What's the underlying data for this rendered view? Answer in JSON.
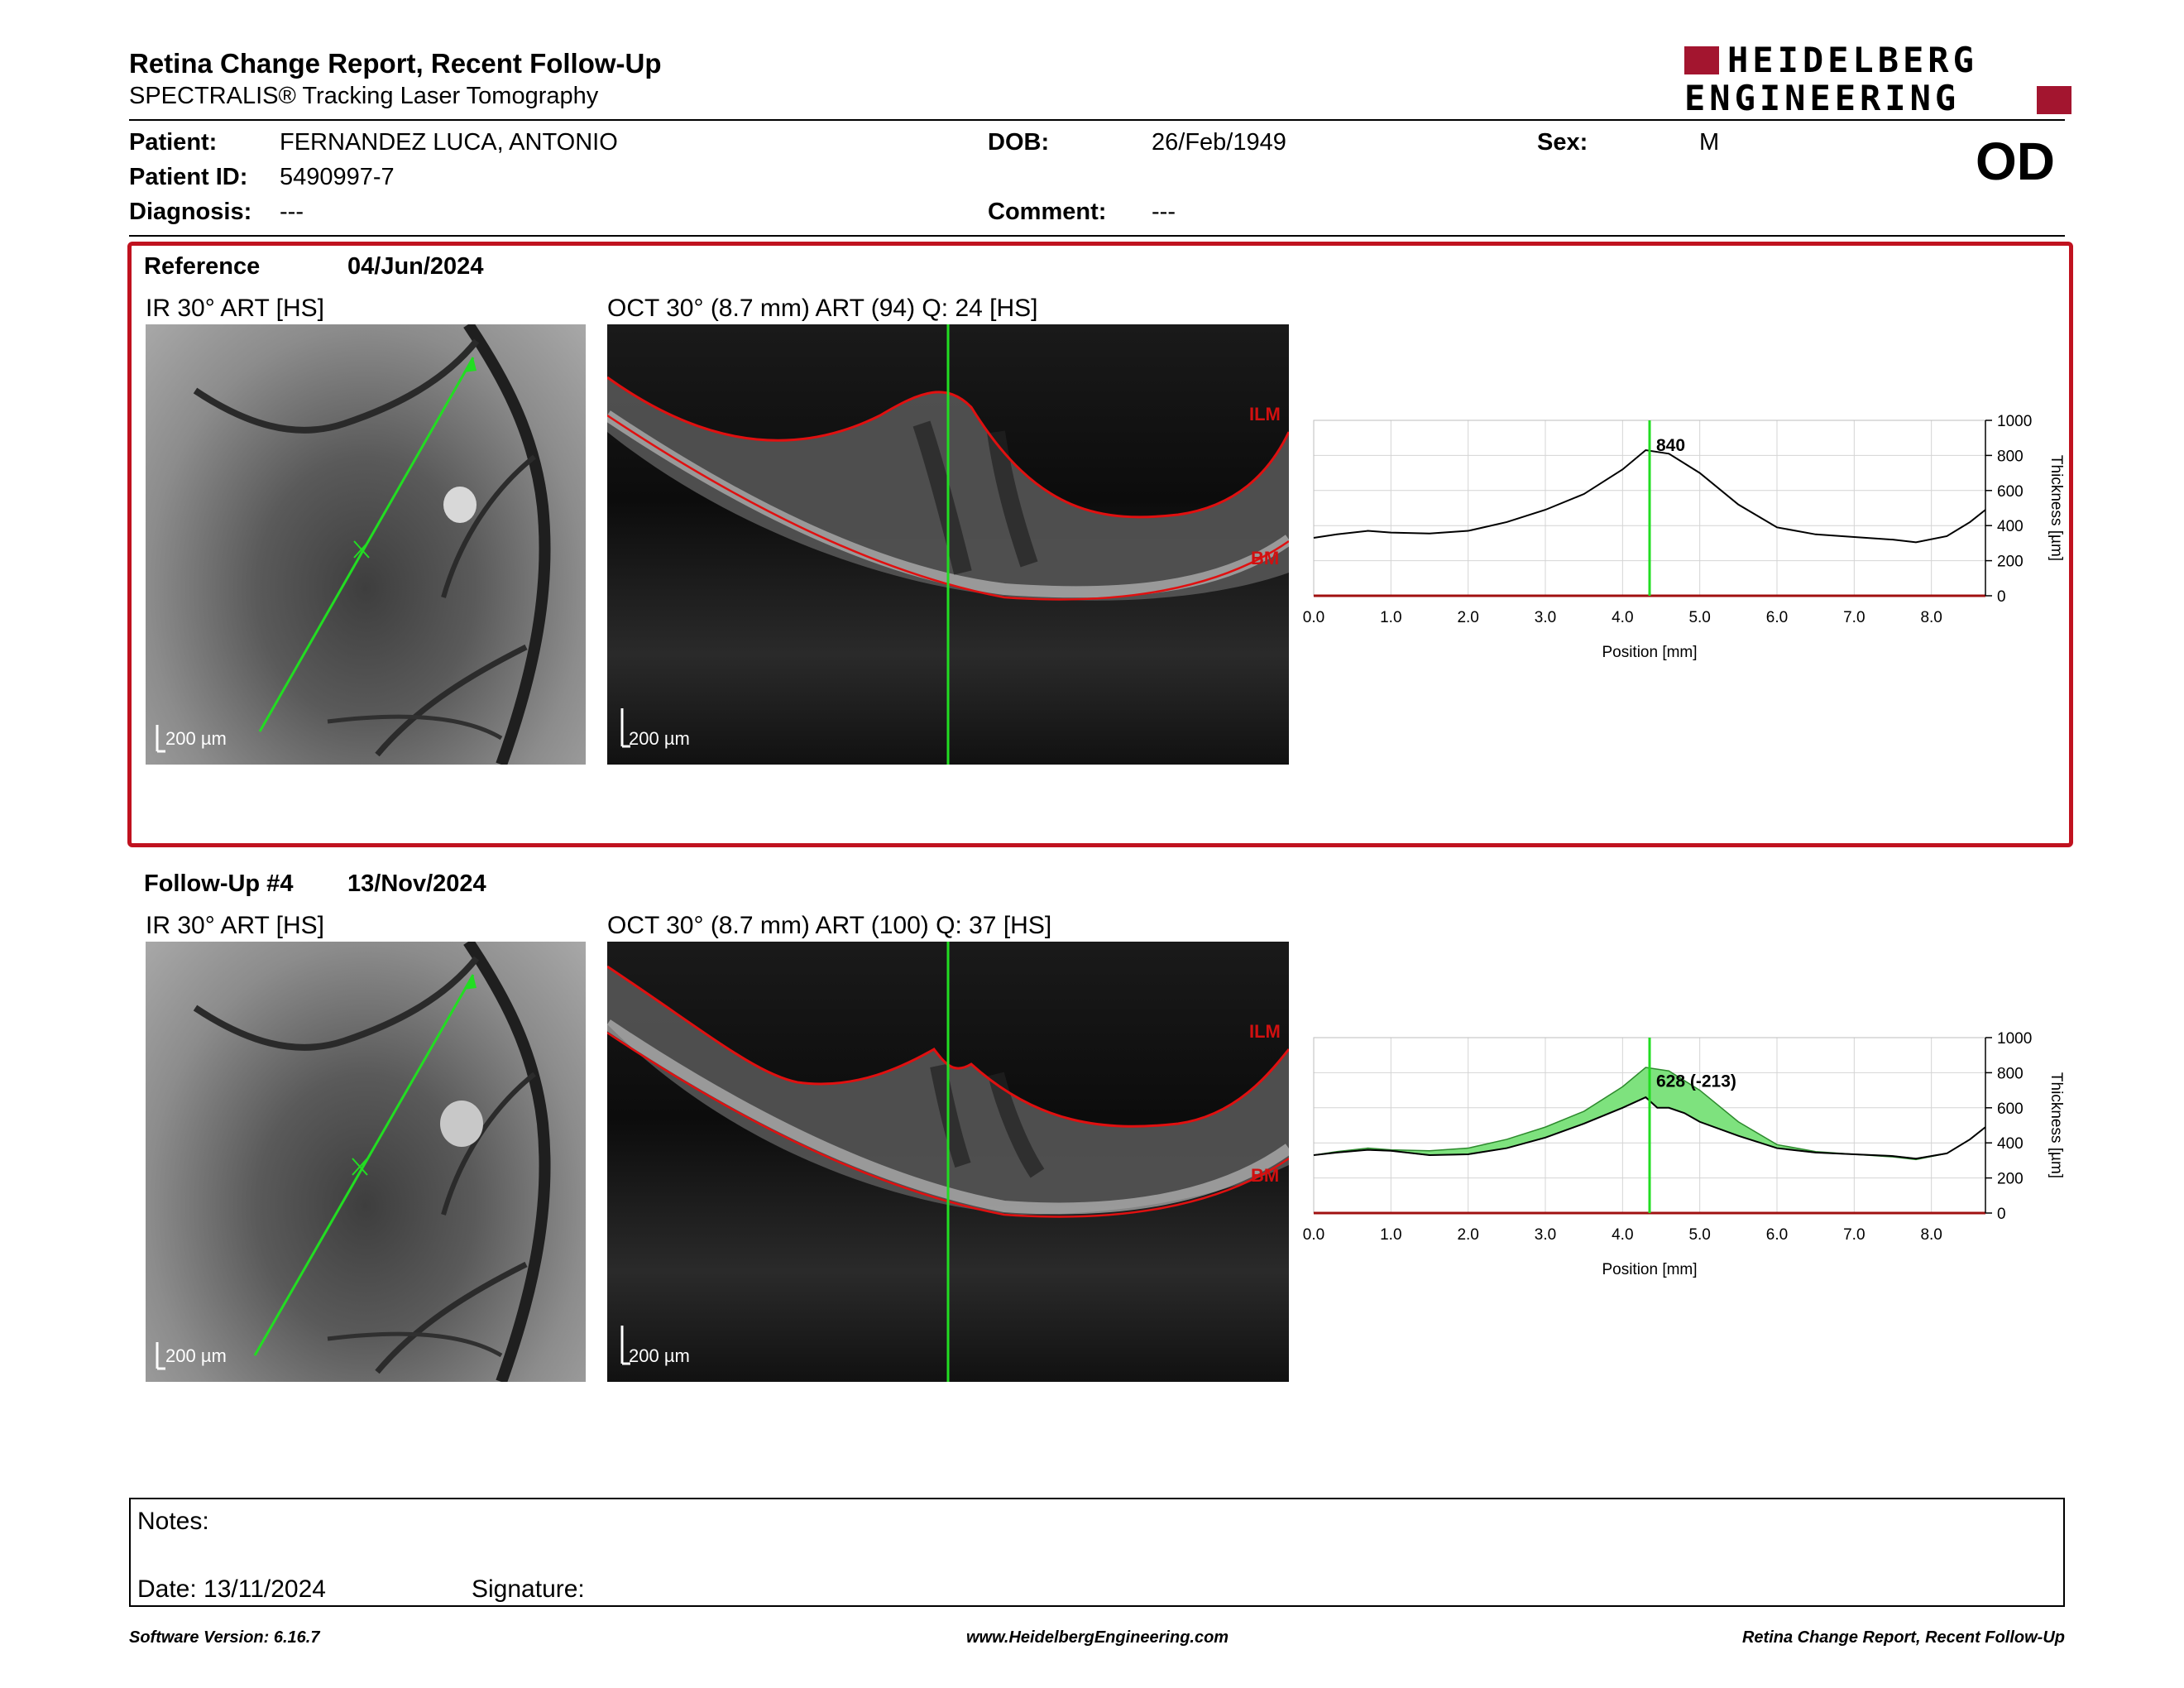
{
  "header": {
    "title": "Retina Change Report, Recent Follow-Up",
    "subtitle": "SPECTRALIS® Tracking Laser Tomography",
    "logo_line1": "HEIDELBERG",
    "logo_line2": "ENGINEERING",
    "eye": "OD"
  },
  "patient": {
    "patient_label": "Patient:",
    "patient_value": "FERNANDEZ LUCA, ANTONIO",
    "id_label": "Patient ID:",
    "id_value": "5490997-7",
    "diagnosis_label": "Diagnosis:",
    "diagnosis_value": "---",
    "dob_label": "DOB:",
    "dob_value": "26/Feb/1949",
    "comment_label": "Comment:",
    "comment_value": "---",
    "sex_label": "Sex:",
    "sex_value": "M"
  },
  "reference": {
    "label": "Reference",
    "date": "04/Jun/2024",
    "ir_label": "IR 30° ART [HS]",
    "oct_label": "OCT 30° (8.7 mm) ART (94) Q: 24 [HS]",
    "scale": "200 µm",
    "ilm": "ILM",
    "bm": "BM"
  },
  "followup": {
    "label": "Follow-Up #4",
    "date": "13/Nov/2024",
    "ir_label": "IR 30° ART [HS]",
    "oct_label": "OCT 30° (8.7 mm) ART (100) Q: 37 [HS]",
    "scale": "200 µm",
    "ilm": "ILM",
    "bm": "BM"
  },
  "chart_data": [
    {
      "type": "line",
      "xlabel": "Position [mm]",
      "ylabel": "Thickness [µm]",
      "xlim": [
        0,
        8.7
      ],
      "ylim": [
        0,
        1000
      ],
      "x_ticks": [
        "0.0",
        "1.0",
        "2.0",
        "3.0",
        "4.0",
        "5.0",
        "6.0",
        "7.0",
        "8.0"
      ],
      "y_ticks": [
        "0",
        "200",
        "400",
        "600",
        "800",
        "1000"
      ],
      "marker_x": 4.35,
      "marker_label": "840",
      "series": [
        {
          "x": [
            0,
            0.3,
            0.7,
            1.0,
            1.5,
            2.0,
            2.5,
            3.0,
            3.5,
            4.0,
            4.3,
            4.6,
            5.0,
            5.5,
            6.0,
            6.5,
            7.0,
            7.5,
            7.8,
            8.2,
            8.5,
            8.7
          ],
          "values": [
            330,
            350,
            370,
            360,
            355,
            370,
            420,
            490,
            580,
            720,
            830,
            810,
            700,
            520,
            390,
            350,
            335,
            320,
            305,
            340,
            420,
            490
          ]
        }
      ],
      "grid": true
    },
    {
      "type": "area",
      "xlabel": "Position [mm]",
      "ylabel": "Thickness [µm]",
      "xlim": [
        0,
        8.7
      ],
      "ylim": [
        0,
        1000
      ],
      "x_ticks": [
        "0.0",
        "1.0",
        "2.0",
        "3.0",
        "4.0",
        "5.0",
        "6.0",
        "7.0",
        "8.0"
      ],
      "y_ticks": [
        "0",
        "200",
        "400",
        "600",
        "800",
        "1000"
      ],
      "marker_x": 4.35,
      "marker_label": "628 (-213)",
      "series": [
        {
          "x": [
            0,
            0.3,
            0.7,
            1.0,
            1.5,
            2.0,
            2.5,
            3.0,
            3.5,
            4.0,
            4.3,
            4.6,
            5.0,
            5.5,
            6.0,
            6.5,
            7.0,
            7.5,
            7.8,
            8.2,
            8.5,
            8.7
          ],
          "values": [
            330,
            350,
            370,
            360,
            355,
            370,
            420,
            490,
            580,
            720,
            830,
            810,
            700,
            520,
            390,
            350,
            335,
            320,
            305,
            340,
            420,
            490
          ]
        },
        {
          "x": [
            0,
            0.3,
            0.7,
            1.0,
            1.5,
            2.0,
            2.5,
            3.0,
            3.5,
            4.0,
            4.3,
            4.45,
            4.6,
            4.8,
            5.0,
            5.5,
            6.0,
            6.5,
            7.0,
            7.5,
            7.8,
            8.2,
            8.5,
            8.7
          ],
          "values": [
            330,
            345,
            360,
            355,
            330,
            335,
            370,
            430,
            510,
            600,
            660,
            600,
            600,
            570,
            520,
            440,
            370,
            345,
            335,
            325,
            310,
            340,
            420,
            490
          ]
        }
      ],
      "fill_color": "#7ee27e",
      "grid": true
    }
  ],
  "notes": {
    "notes_label": "Notes:",
    "date_label": "Date: 13/11/2024",
    "signature_label": "Signature:"
  },
  "footer": {
    "software": "Software Version: 6.16.7",
    "website": "www.HeidelbergEngineering.com",
    "report": "Retina Change Report, Recent Follow-Up"
  },
  "colors": {
    "frame_red": "#c0121f",
    "marker_green": "#22dd22",
    "logo_red": "#a3152f"
  }
}
